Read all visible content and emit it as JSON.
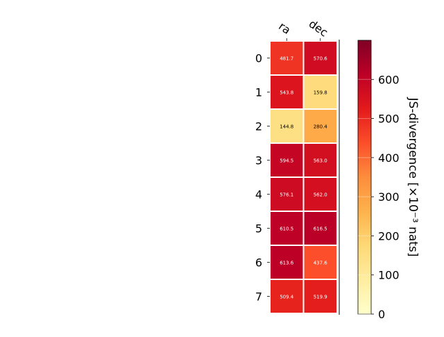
{
  "chart_data": {
    "type": "heatmap",
    "columns": [
      "ra",
      "dec"
    ],
    "rows": [
      "0",
      "1",
      "2",
      "3",
      "4",
      "5",
      "6",
      "7"
    ],
    "values": [
      [
        481.7,
        570.6
      ],
      [
        543.8,
        159.8
      ],
      [
        144.8,
        280.4
      ],
      [
        594.5,
        563.0
      ],
      [
        576.1,
        562.0
      ],
      [
        610.5,
        616.5
      ],
      [
        613.6,
        437.6
      ],
      [
        509.4,
        519.9
      ]
    ],
    "colorbar": {
      "label": "JS-divergence [×10⁻³ nats]",
      "range": [
        0,
        700
      ],
      "ticks": [
        "0",
        "100",
        "200",
        "300",
        "400",
        "500",
        "600"
      ],
      "colormap": "YlOrRd"
    },
    "value_format": "one decimal place"
  }
}
